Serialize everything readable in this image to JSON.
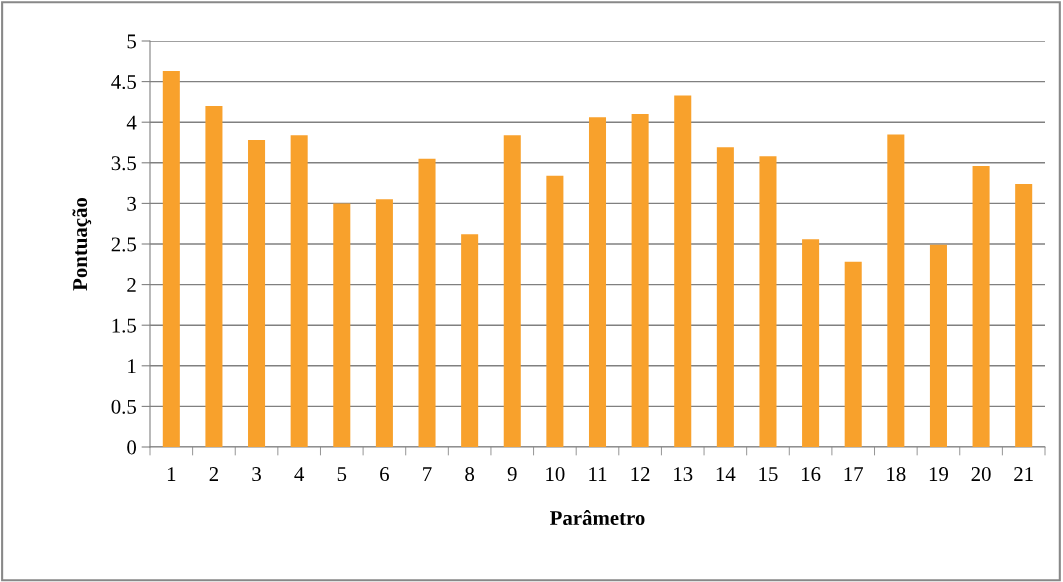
{
  "chart_data": {
    "type": "bar",
    "xlabel": "Parâmetro",
    "ylabel": "Pontuação",
    "categories": [
      "1",
      "2",
      "3",
      "4",
      "5",
      "6",
      "7",
      "8",
      "9",
      "10",
      "11",
      "12",
      "13",
      "14",
      "15",
      "16",
      "17",
      "18",
      "19",
      "20",
      "21"
    ],
    "values": [
      4.63,
      4.2,
      3.78,
      3.84,
      3.0,
      3.05,
      3.55,
      2.62,
      3.84,
      3.34,
      4.06,
      4.1,
      4.33,
      3.69,
      3.58,
      2.56,
      2.28,
      3.85,
      2.49,
      3.46,
      3.24
    ],
    "color": "#f8a12c",
    "ylim": [
      0,
      5
    ],
    "yticks": [
      0,
      0.5,
      1,
      1.5,
      2,
      2.5,
      3,
      3.5,
      4,
      4.5,
      5
    ],
    "grid": "y",
    "legend": false
  }
}
